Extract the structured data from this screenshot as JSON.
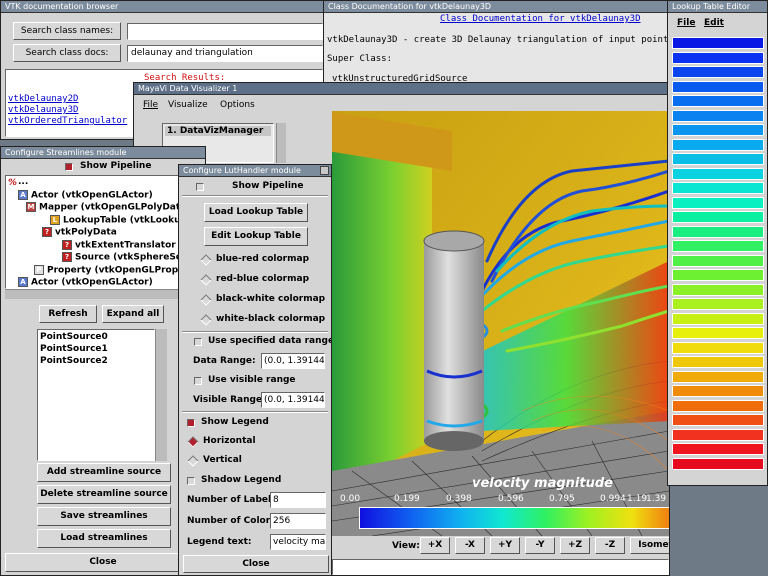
{
  "browser": {
    "title": "VTK documentation browser",
    "btn_names": "Search class names:",
    "btn_docs": "Search class docs:",
    "input_names": "",
    "input_docs": "delaunay and triangulation",
    "results_label": "Search Results:",
    "results": [
      "vtkDelaunay2D",
      "vtkDelaunay3D",
      "vtkOrderedTriangulator"
    ]
  },
  "classdoc": {
    "title": "Class Documentation for vtkDelaunay3D",
    "heading": "Class Documentation for vtkDelaunay3D",
    "line1": "vtkDelaunay3D - create 3D Delaunay triangulation of input points",
    "line2": "Super Class:",
    "line3": "vtkUnstructuredGridSource"
  },
  "lut_editor": {
    "title": "Lookup Table Editor",
    "menu_file": "File",
    "menu_edit": "Edit",
    "colors": [
      "#0a18e6",
      "#0a32f0",
      "#0a46f0",
      "#0a5af0",
      "#0a6ef0",
      "#0a82f0",
      "#0a96f0",
      "#0aaaf0",
      "#0abee6",
      "#0ad2e0",
      "#0ae6d2",
      "#0af0c0",
      "#0af0a0",
      "#1af082",
      "#32f064",
      "#50f046",
      "#6ef032",
      "#8cf028",
      "#aaf01e",
      "#c8f014",
      "#e6f00a",
      "#f0dc0a",
      "#f0c80a",
      "#f0aa0a",
      "#f08c0a",
      "#f06e0a",
      "#f05014",
      "#f0321e",
      "#f0141e",
      "#e60a1e"
    ]
  },
  "mayavi": {
    "title": "MayaVi Data Visualizer 1",
    "menu_file": "File",
    "menu_visualize": "Visualize",
    "menu_options": "Options",
    "list_item": "1. DataVizManager"
  },
  "viewbar": {
    "label": "View:",
    "buttons": [
      "+X",
      "-X",
      "+Y",
      "-Y",
      "+Z",
      "-Z",
      "Isometric"
    ]
  },
  "legend": {
    "title": "velocity magnitude",
    "ticks": [
      "0.00",
      "0.199",
      "0.398",
      "0.596",
      "0.795",
      "0.994",
      "1.19",
      "1.39"
    ]
  },
  "streamlines": {
    "title": "Configure Streamlines module",
    "show_pipeline": "Show Pipeline",
    "tree": [
      {
        "text": "...",
        "icon": ""
      },
      {
        "text": "Actor (vtkOpenGLActor)",
        "icon": "A"
      },
      {
        "text": "Mapper (vtkOpenGLPolyDataM",
        "icon": "M"
      },
      {
        "text": "LookupTable (vtkLookupTable)",
        "icon": "L"
      },
      {
        "text": "vtkPolyData",
        "icon": "?"
      },
      {
        "text": "vtkExtentTranslator",
        "icon": "?"
      },
      {
        "text": "Source (vtkSphereSource)",
        "icon": "?"
      },
      {
        "text": "Property (vtkOpenGLProperty)",
        "icon": "P"
      },
      {
        "text": "Actor (vtkOpenGLActor)",
        "icon": "A"
      }
    ],
    "btn_refresh": "Refresh",
    "btn_expand": "Expand all",
    "points": [
      "PointSource0",
      "PointSource1",
      "PointSource2"
    ],
    "btn_add": "Add streamline source",
    "btn_delete": "Delete streamline source",
    "btn_save": "Save streamlines",
    "btn_load": "Load streamlines",
    "btn_close": "Close"
  },
  "luthandler": {
    "title": "Configure LutHandler module",
    "show_pipeline": "Show Pipeline",
    "btn_load": "Load Lookup Table",
    "btn_edit": "Edit Lookup Table",
    "colormaps": [
      "blue-red colormap",
      "red-blue colormap",
      "black-white colormap",
      "white-black colormap"
    ],
    "use_data_range": "Use specified data range",
    "data_range_label": "Data Range:",
    "data_range": "(0.0, 1.39144",
    "use_visible_range": "Use visible range",
    "visible_range_label": "Visible Range:",
    "visible_range": "(0.0, 1.39144",
    "show_legend": "Show Legend",
    "horizontal": "Horizontal",
    "vertical": "Vertical",
    "shadow_legend": "Shadow Legend",
    "num_labels_label": "Number of Labels:",
    "num_labels": "8",
    "num_colors_label": "Number of Colors:",
    "num_colors": "256",
    "legend_text_label": "Legend text:",
    "legend_text": "velocity mag",
    "btn_close": "Close"
  }
}
